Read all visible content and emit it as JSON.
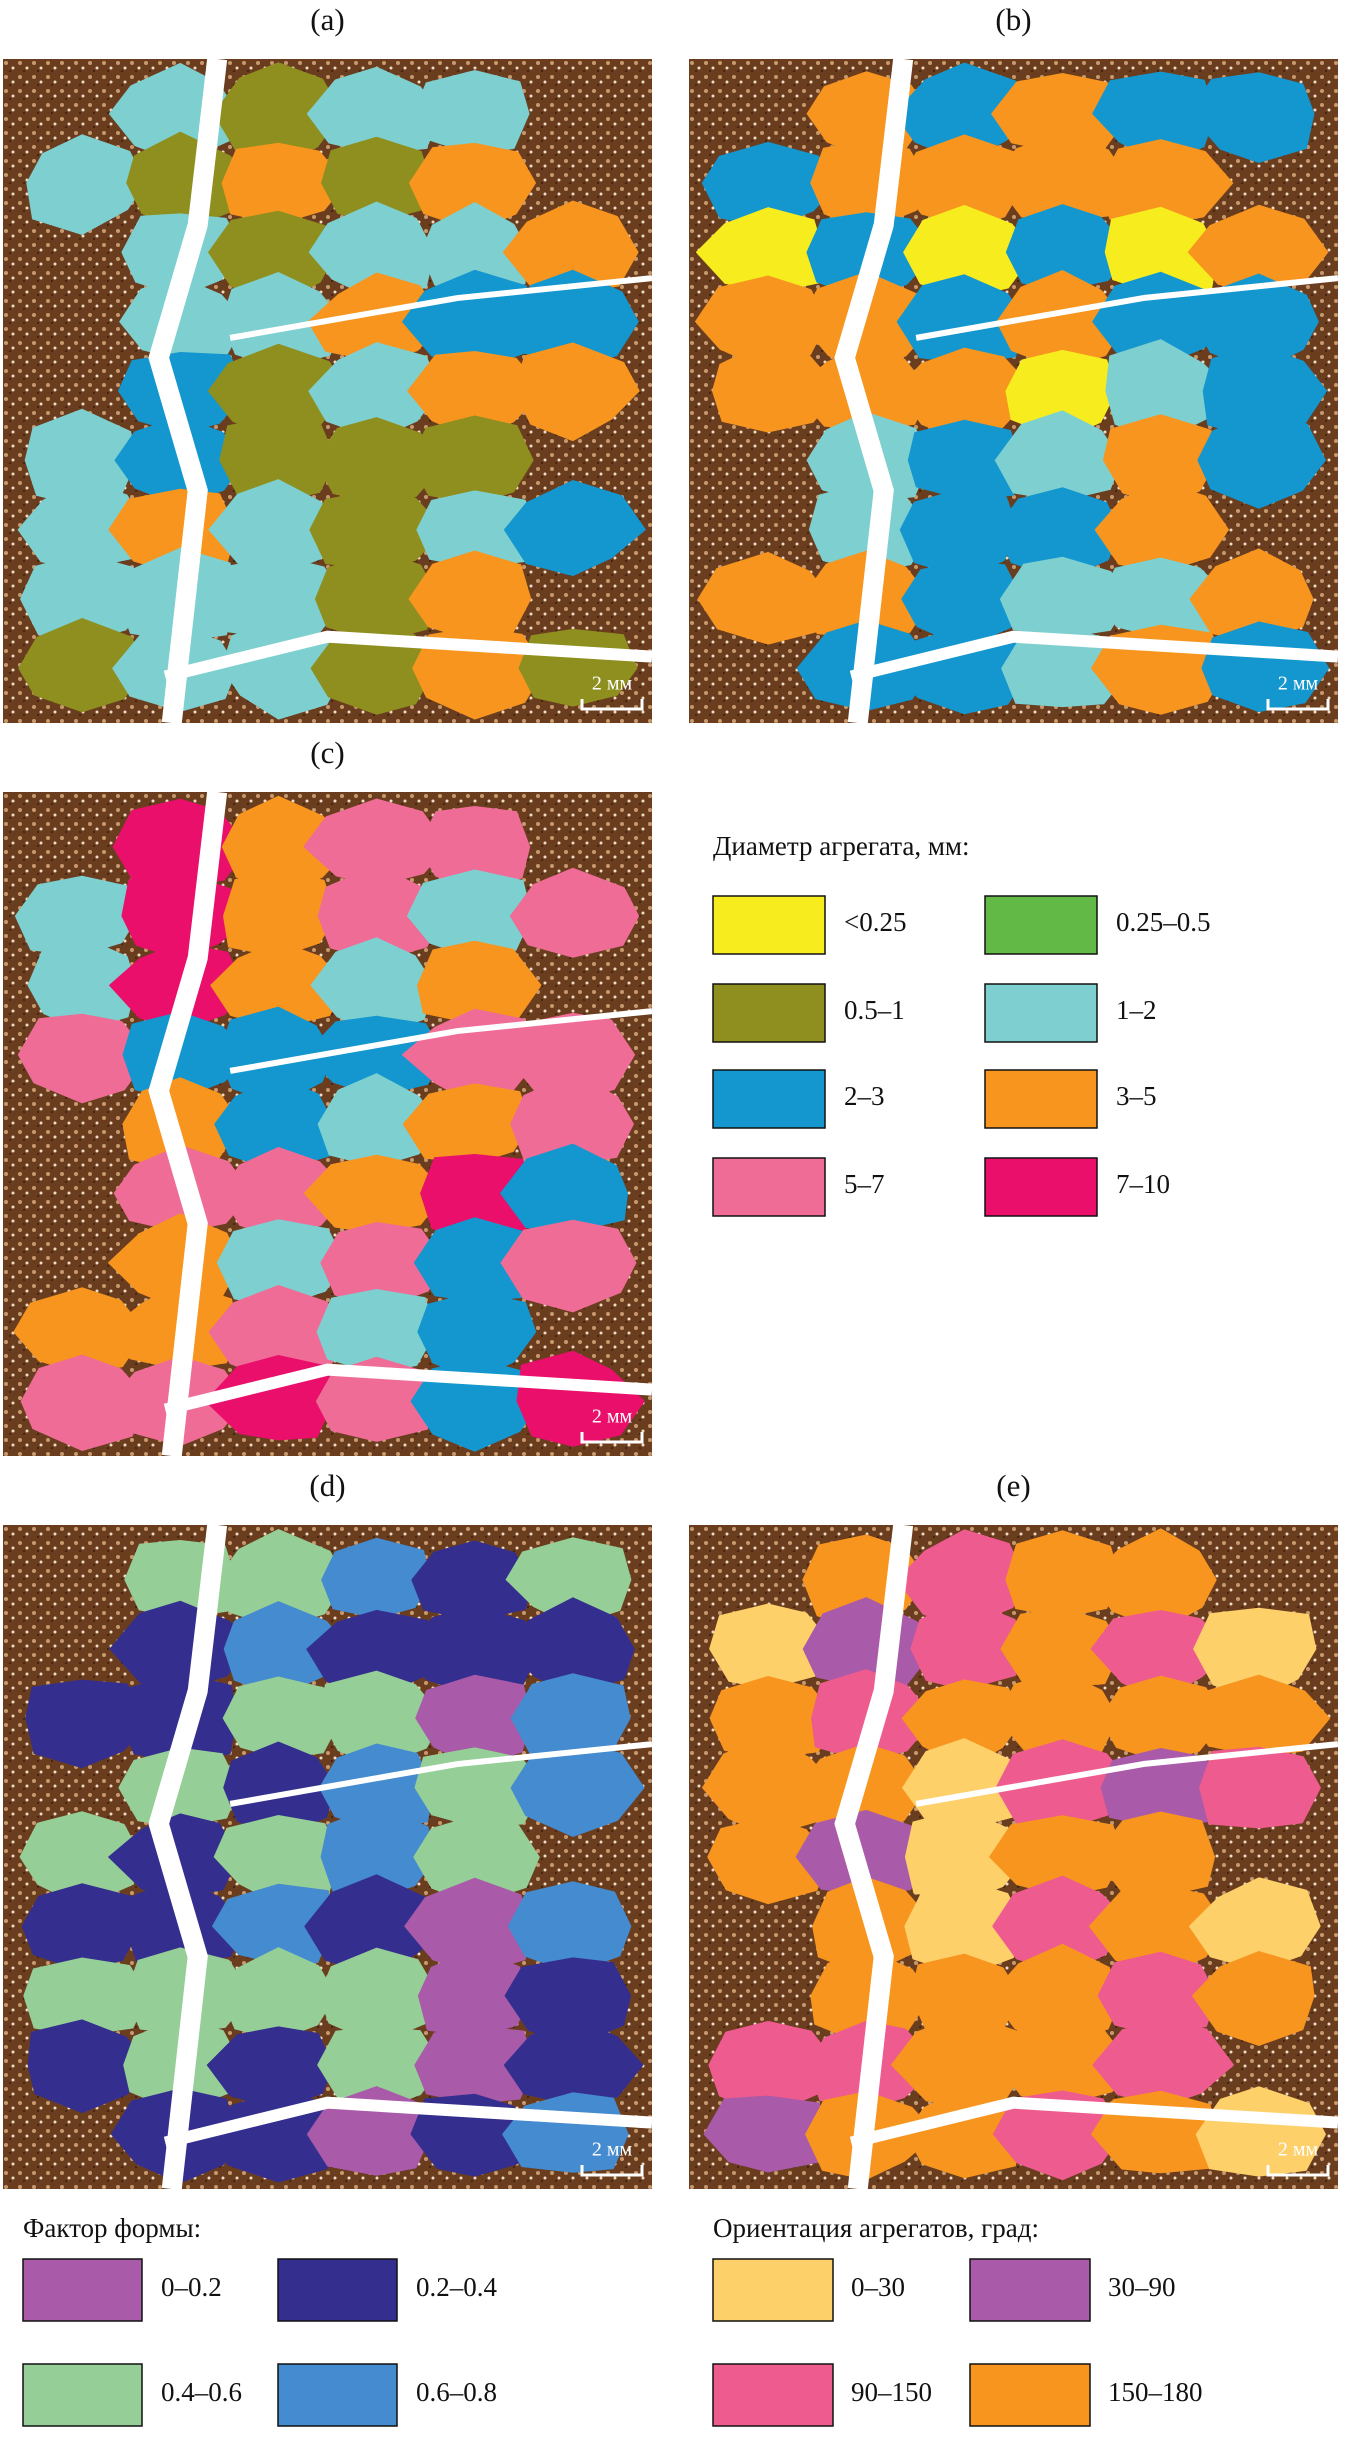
{
  "panels": [
    {
      "label": "(a)",
      "scale_bar": "2 мм"
    },
    {
      "label": "(b)",
      "scale_bar": "2 мм"
    },
    {
      "label": "(c)",
      "scale_bar": "2 мм"
    },
    {
      "label": "(d)",
      "scale_bar": "2 мм"
    },
    {
      "label": "(e)",
      "scale_bar": "2 мм"
    }
  ],
  "legend_diameter": {
    "title": "Диаметр агрегата, мм:",
    "items": [
      {
        "label": "<0.25",
        "color": "#f7ec1d"
      },
      {
        "label": "0.25–0.5",
        "color": "#62b946"
      },
      {
        "label": "0.5–1",
        "color": "#8e8f1f"
      },
      {
        "label": "1–2",
        "color": "#7ecfcf"
      },
      {
        "label": "2–3",
        "color": "#1496cf"
      },
      {
        "label": "3–5",
        "color": "#f7951e"
      },
      {
        "label": "5–7",
        "color": "#ef6c96"
      },
      {
        "label": "7–10",
        "color": "#e90f6b"
      }
    ]
  },
  "legend_shape": {
    "title": "Фактор формы:",
    "items": [
      {
        "label": "0–0.2",
        "color": "#a95aa8"
      },
      {
        "label": "0.2–0.4",
        "color": "#342f8e"
      },
      {
        "label": "0.4–0.6",
        "color": "#95cf97"
      },
      {
        "label": "0.6–0.8",
        "color": "#458bd0"
      }
    ]
  },
  "legend_orientation": {
    "title": "Ориентация агрегатов, град:",
    "items": [
      {
        "label": "0–30",
        "color": "#fdd06a"
      },
      {
        "label": "30–90",
        "color": "#a95aa8"
      },
      {
        "label": "90–150",
        "color": "#ee5b8f"
      },
      {
        "label": "150–180",
        "color": "#f7951e"
      }
    ]
  }
}
